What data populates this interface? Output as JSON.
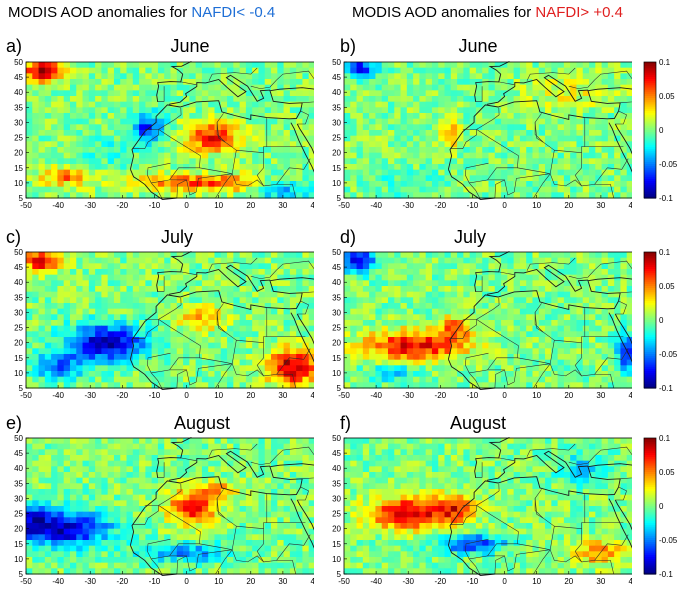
{
  "header": {
    "left_prefix": "MODIS AOD anomalies for ",
    "left_highlight": "NAFDI< -0.4",
    "right_prefix": "MODIS AOD anomalies for ",
    "right_highlight": "NAFDI> +0.4",
    "left_color": "#1f6fd6",
    "right_color": "#e02020"
  },
  "panels": [
    {
      "label": "a)",
      "month": "June",
      "composite": "negative"
    },
    {
      "label": "b)",
      "month": "June",
      "composite": "positive"
    },
    {
      "label": "c)",
      "month": "July",
      "composite": "negative"
    },
    {
      "label": "d)",
      "month": "July",
      "composite": "positive"
    },
    {
      "label": "e)",
      "month": "August",
      "composite": "negative"
    },
    {
      "label": "f)",
      "month": "August",
      "composite": "positive"
    }
  ],
  "map": {
    "x_ticks": [
      "-50",
      "-40",
      "-30",
      "-20",
      "-10",
      "0",
      "10",
      "20",
      "30",
      "40"
    ],
    "y_ticks": [
      "5",
      "10",
      "15",
      "20",
      "25",
      "30",
      "35",
      "40",
      "45",
      "50"
    ],
    "lon_range": [
      -50,
      40
    ],
    "lat_range": [
      5,
      50
    ],
    "basemap": "North Africa and Atlantic coastlines with country borders"
  },
  "colorbar": {
    "ticks": [
      "0.1",
      "0.05",
      "0",
      "-0.05",
      "-0.1"
    ],
    "range": [
      -0.1,
      0.1
    ],
    "colormap": "jet"
  }
}
